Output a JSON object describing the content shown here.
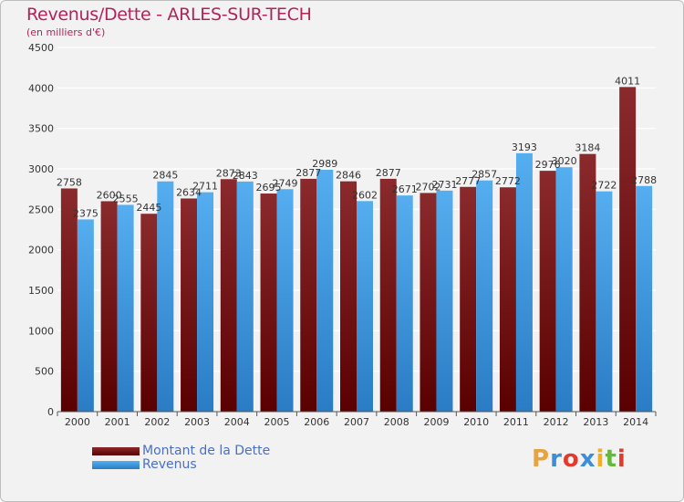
{
  "header": {
    "title": "Revenus/Dette - ARLES-SUR-TECH",
    "subtitle": "(en milliers d'€)"
  },
  "logo": {
    "letters": [
      "P",
      "r",
      "o",
      "x",
      "i",
      "t",
      "i"
    ],
    "colors": [
      "#e8a33c",
      "#3a8fd8",
      "#e03b2c",
      "#3a8fd8",
      "#f0b020",
      "#64b83c",
      "#e03b2c"
    ]
  },
  "colors": {
    "dette": "#7a1416",
    "revenus": "#2f8fd8",
    "grid": "#ffffff",
    "background": "#f2f2f2"
  },
  "chart_data": {
    "type": "bar",
    "title": "Revenus/Dette - ARLES-SUR-TECH",
    "ylabel": "(en milliers d'€)",
    "xlabel": "",
    "ylim": [
      0,
      4500
    ],
    "yticks": [
      0,
      500,
      1000,
      1500,
      2000,
      2500,
      3000,
      3500,
      4000,
      4500
    ],
    "grid": true,
    "legend": "bottom-left",
    "categories": [
      "2000",
      "2001",
      "2002",
      "2003",
      "2004",
      "2005",
      "2006",
      "2007",
      "2008",
      "2009",
      "2010",
      "2011",
      "2012",
      "2013",
      "2014"
    ],
    "series": [
      {
        "name": "Montant de la Dette",
        "color": "#7a1416",
        "values": [
          2758,
          2600,
          2445,
          2634,
          2873,
          2695,
          2877,
          2846,
          2877,
          2702,
          2777,
          2772,
          2976,
          3184,
          4011
        ]
      },
      {
        "name": "Revenus",
        "color": "#2f8fd8",
        "values": [
          2375,
          2555,
          2845,
          2711,
          2843,
          2749,
          2989,
          2602,
          2671,
          2731,
          2857,
          3193,
          3020,
          2722,
          2788
        ]
      }
    ]
  }
}
